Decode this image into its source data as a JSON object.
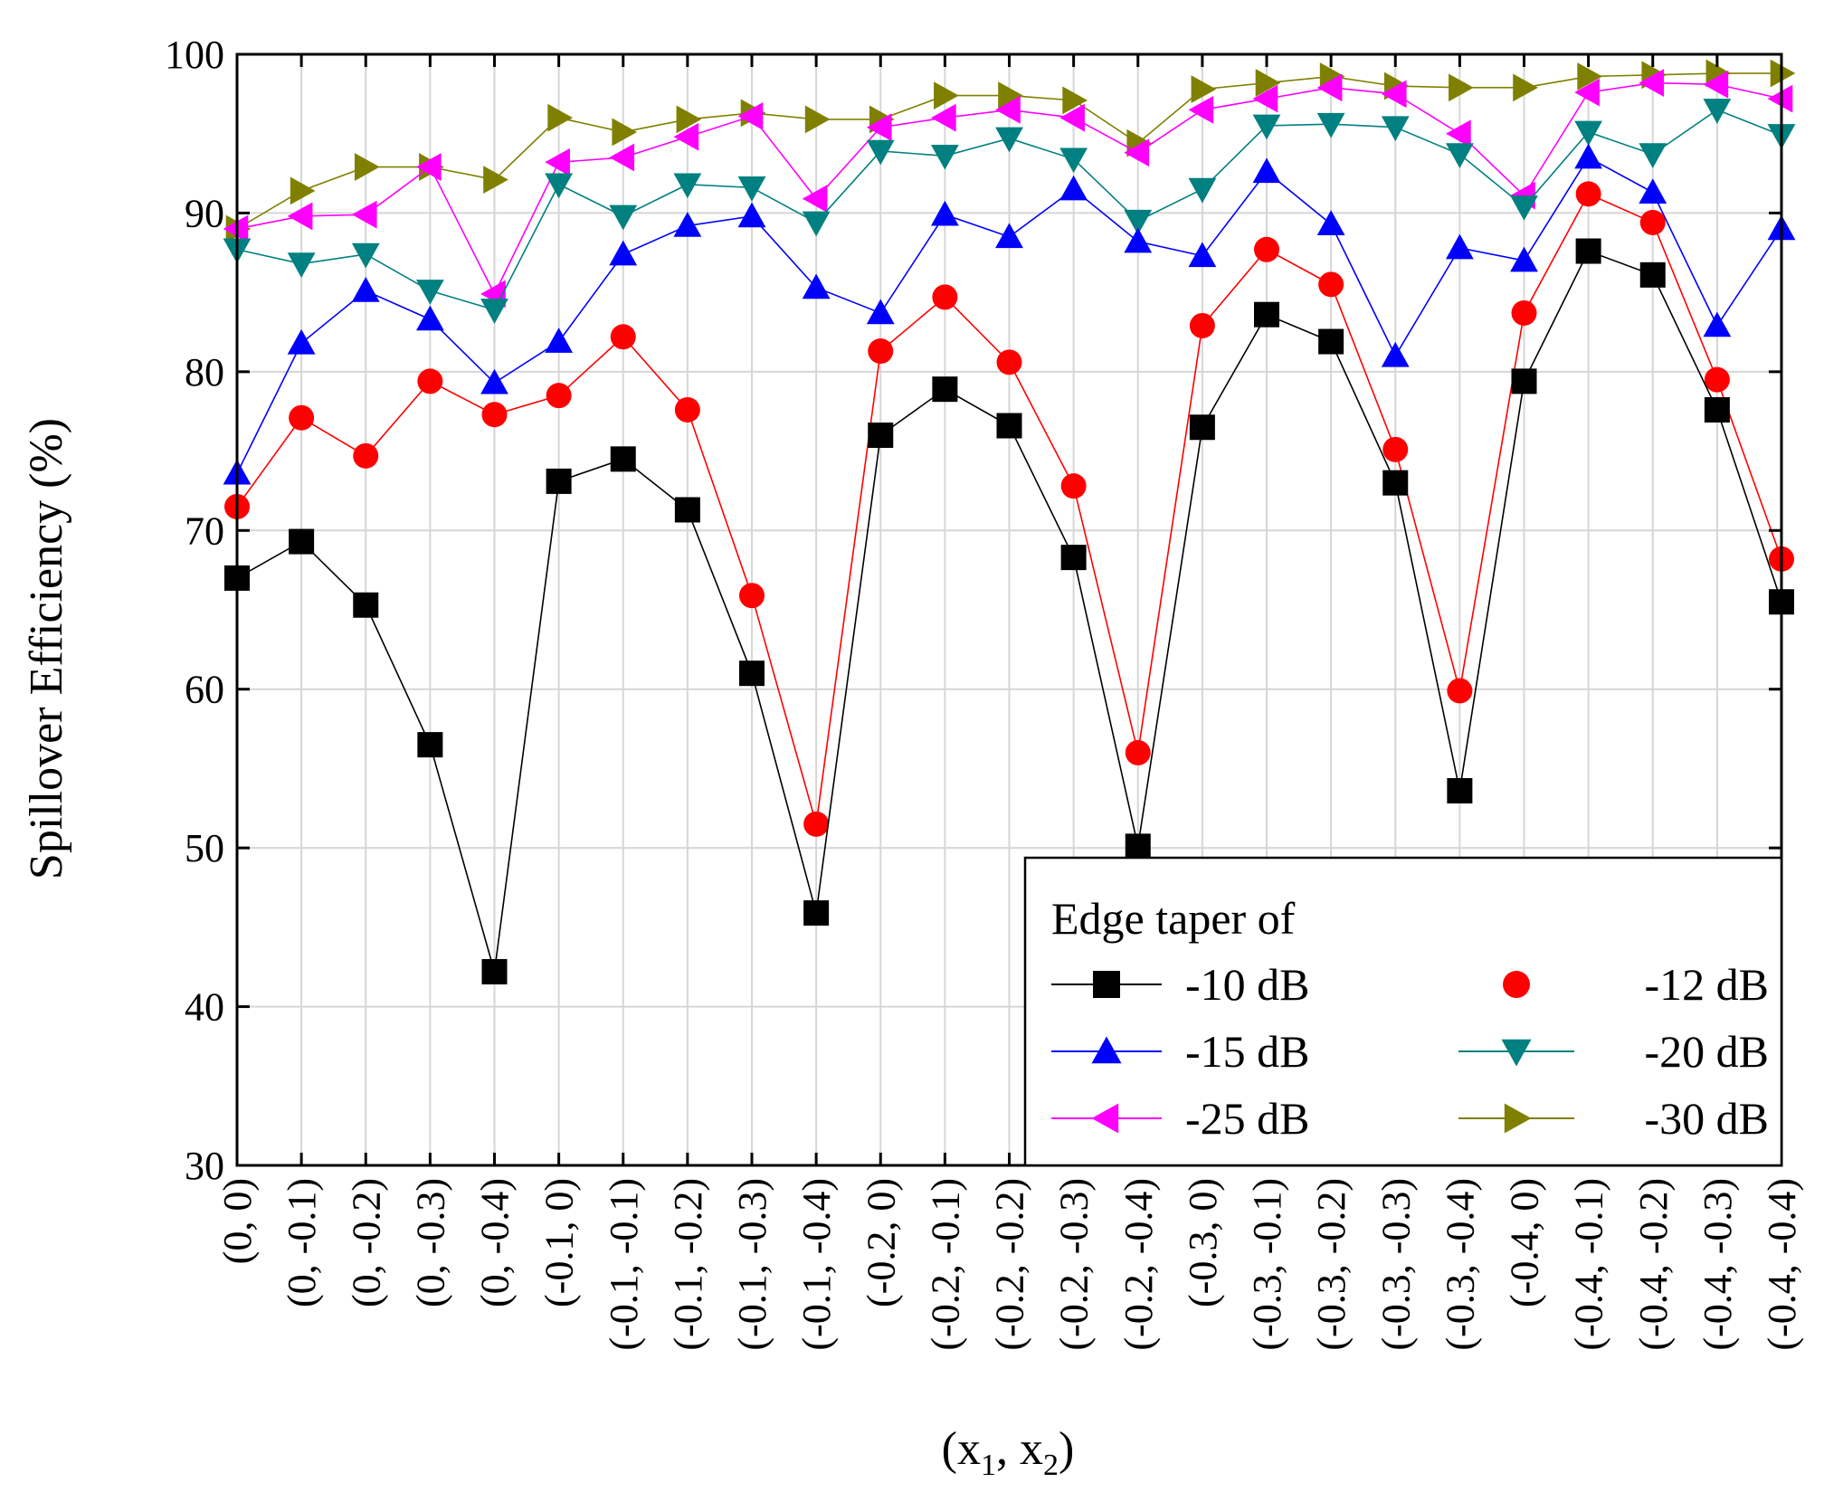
{
  "chart_data": {
    "type": "line",
    "title": "",
    "xlabel": "(x1, x2)",
    "ylabel": "Spillover Efficiency (%)",
    "ylim": [
      30,
      100
    ],
    "yticks": [
      30,
      40,
      50,
      60,
      70,
      80,
      90,
      100
    ],
    "grid": true,
    "legend_position": "bottom-right",
    "legend_title": "Edge taper of",
    "categories": [
      "(0, 0)",
      "(0, -0.1)",
      "(0, -0.2)",
      "(0, -0.3)",
      "(0, -0.4)",
      "(-0.1, 0)",
      "(-0.1, -0.1)",
      "(-0.1, -0.2)",
      "(-0.1, -0.3)",
      "(-0.1, -0.4)",
      "(-0.2, 0)",
      "(-0.2, -0.1)",
      "(-0.2, -0.2)",
      "(-0.2, -0.3)",
      "(-0.2, -0.4)",
      "(-0.3, 0)",
      "(-0.3, -0.1)",
      "(-0.3, -0.2)",
      "(-0.3, -0.3)",
      "(-0.3, -0.4)",
      "(-0.4, 0)",
      "(-0.4, -0.1)",
      "(-0.4, -0.2)",
      "(-0.4, -0.3)",
      "(-0.4, -0.4)"
    ],
    "series": [
      {
        "name": "-10 dB",
        "color": "#000000",
        "marker": "square",
        "values": [
          67,
          69.3,
          65.3,
          56.5,
          42.2,
          73.1,
          74.5,
          71.3,
          61,
          45.9,
          76,
          78.9,
          76.6,
          68.3,
          50.1,
          76.5,
          83.6,
          81.9,
          73,
          53.6,
          79.4,
          87.6,
          86.1,
          77.6,
          65.5
        ]
      },
      {
        "name": "-12 dB",
        "color": "#ff0000",
        "marker": "circle",
        "values": [
          71.5,
          77.1,
          74.7,
          79.4,
          77.3,
          78.5,
          82.2,
          77.6,
          65.9,
          51.5,
          81.3,
          84.7,
          80.6,
          72.8,
          56,
          82.9,
          87.7,
          85.5,
          75.1,
          59.9,
          83.7,
          91.2,
          89.4,
          79.5,
          68.2
        ]
      },
      {
        "name": "-15 dB",
        "color": "#0000ff",
        "marker": "triangle-up",
        "values": [
          73.6,
          81.8,
          85.1,
          83.3,
          79.3,
          81.9,
          87.4,
          89.2,
          89.8,
          85.3,
          83.7,
          89.9,
          88.5,
          91.5,
          88.2,
          87.3,
          92.6,
          89.3,
          81,
          87.8,
          87,
          93.5,
          91.3,
          82.9,
          89
        ]
      },
      {
        "name": "-20 dB",
        "color": "#008080",
        "marker": "triangle-down",
        "values": [
          87.7,
          86.8,
          87.4,
          85.1,
          83.9,
          91.8,
          89.8,
          91.8,
          91.6,
          89.4,
          93.9,
          93.6,
          94.7,
          93.4,
          89.5,
          91.5,
          95.5,
          95.6,
          95.4,
          93.7,
          90.4,
          95.1,
          93.7,
          96.5,
          94.9
        ]
      },
      {
        "name": "-25 dB",
        "color": "#ff00ff",
        "marker": "triangle-left",
        "values": [
          89,
          89.8,
          89.9,
          92.9,
          84.9,
          93.2,
          93.5,
          94.8,
          96.1,
          90.9,
          95.4,
          96,
          96.5,
          96,
          93.8,
          96.5,
          97.2,
          97.9,
          97.5,
          95,
          91.1,
          97.6,
          98.2,
          98.1,
          97.2
        ]
      },
      {
        "name": "-30 dB",
        "color": "#808000",
        "marker": "triangle-right",
        "values": [
          89,
          91.4,
          92.9,
          92.9,
          92.1,
          96,
          95.1,
          95.9,
          96.3,
          95.9,
          95.9,
          97.4,
          97.4,
          97.1,
          94.4,
          97.8,
          98.2,
          98.6,
          98,
          97.9,
          97.9,
          98.6,
          98.7,
          98.8,
          98.8
        ]
      }
    ]
  }
}
